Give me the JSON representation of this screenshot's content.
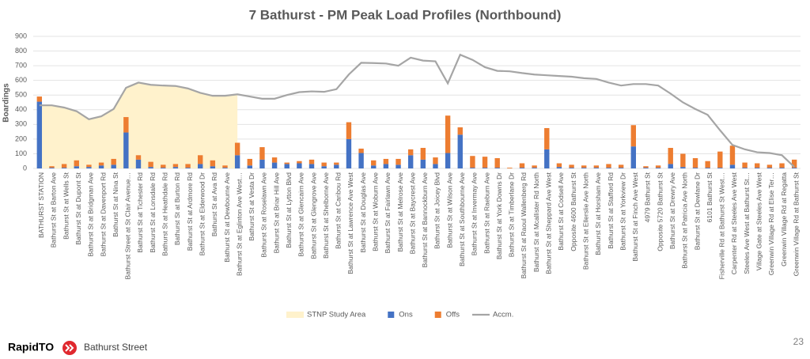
{
  "chart_data": {
    "type": "stacked_bar_line",
    "title": "7 Bathurst - PM Peak Load Profiles (Northbound)",
    "y_label": "Boardings",
    "categories": [
      "BATHURST STATION",
      "Bathurst St at Barton Ave",
      "Bathurst St at Wells St",
      "Bathurst St at Dupont St",
      "Bathurst St at Bridgman Ave",
      "Bathurst St at Davenport Rd",
      "Bathurst St at Nina St",
      "Bathurst Street at St Clair Avenue…",
      "Bathurst St at Tichester Rd",
      "Bathurst St at Lonsdale Rd",
      "Bathurst St at Heathdale Rd",
      "Bathurst St at Burton Rd",
      "Bathurst St at Ardmore Rd",
      "Bathurst St at Elderwood Dr",
      "Bathurst St at Ava Rd",
      "Bathurst St at Dewbourne Ave",
      "Bathurst St at Eglinton Ave West…",
      "Bathurst St at Vesta Dr",
      "Bathurst St at Roselawn Ave",
      "Bathurst St at Briar Hill Ave",
      "Bathurst St at Lytton Blvd",
      "Bathurst St at Glencairn Ave",
      "Bathurst St at Glengrove Ave",
      "Bathurst St at Shelborne Ave",
      "Bathurst St at Caribou Rd",
      "Bathurst St at Lawrence Ave West",
      "Bathurst St at Douglas Ave",
      "Bathurst St at Woburn Ave",
      "Bathurst St at Fairlawn Ave",
      "Bathurst St at Melrose Ave",
      "Bathurst St at Baycrest Ave",
      "Bathurst St at Bannockburn Ave",
      "Bathurst St at Joicey Blvd",
      "Bathurst St at Wilson Ave",
      "Bathurst St at Southbourne Ave",
      "Bathurst St at Invermay Ave",
      "Bathurst St at Raeburn Ave",
      "Bathurst St at York Downs Dr",
      "Bathurst St at Timberlane Dr",
      "Bathurst St at Raoul Wallenberg Rd",
      "Bathurst St at Mcallister Rd North",
      "Bathurst St at Sheppard Ave West",
      "Bathurst St at Codsell Ave",
      "Opposite 4600 Bathurst St",
      "Bathurst St at Ellerslie Ave North",
      "Bathurst St at Horsham Ave",
      "Bathurst St at Stafford Rd",
      "Bathurst St at Yorkview Dr",
      "Bathurst St at Finch Ave West",
      "4979 Bathurst St",
      "Opposite 5720 Bathurst St",
      "Bathurst St at Drewry Ave",
      "Bathurst St at Patricia Ave North",
      "Bathurst St at Dewlane Dr",
      "6101 Bathurst St",
      "Fisherville Rd at Bathurst St West…",
      "Carpenter Rd at Steeles Ave West",
      "Steeles Ave West at Bathurst St…",
      "Village Gate at Steeles Ave West",
      "Greenwin Village Rd at Elise Ter…",
      "Greenwin Village Rd at Regatta",
      "Greenwin Village Rd at Bathurst St"
    ],
    "series": [
      {
        "name": "Ons",
        "color": "#4472c4",
        "kind": "bar",
        "values": [
          455,
          5,
          5,
          15,
          10,
          20,
          25,
          245,
          60,
          10,
          5,
          10,
          5,
          30,
          15,
          5,
          90,
          20,
          60,
          40,
          30,
          35,
          30,
          15,
          25,
          200,
          105,
          20,
          30,
          25,
          90,
          60,
          30,
          105,
          230,
          5,
          5,
          5,
          0,
          5,
          5,
          130,
          10,
          5,
          5,
          5,
          5,
          5,
          150,
          5,
          5,
          30,
          10,
          5,
          5,
          5,
          25,
          5,
          5,
          5,
          5,
          5
        ]
      },
      {
        "name": "Offs",
        "color": "#ed7d31",
        "kind": "bar",
        "values": [
          35,
          10,
          25,
          40,
          15,
          20,
          40,
          105,
          30,
          35,
          20,
          20,
          25,
          60,
          40,
          15,
          85,
          45,
          85,
          35,
          10,
          15,
          30,
          25,
          15,
          115,
          30,
          35,
          35,
          40,
          40,
          80,
          45,
          255,
          50,
          80,
          75,
          65,
          5,
          30,
          15,
          145,
          25,
          20,
          15,
          15,
          25,
          20,
          145,
          10,
          15,
          110,
          90,
          65,
          45,
          110,
          130,
          35,
          30,
          20,
          30,
          55
        ]
      },
      {
        "name": "Accm.",
        "color": "#a5a5a5",
        "kind": "line",
        "values": [
          430,
          430,
          415,
          390,
          335,
          355,
          405,
          550,
          585,
          570,
          565,
          562,
          545,
          515,
          495,
          495,
          505,
          490,
          475,
          475,
          500,
          520,
          525,
          522,
          540,
          640,
          720,
          718,
          715,
          700,
          755,
          735,
          730,
          580,
          775,
          740,
          690,
          665,
          662,
          650,
          640,
          635,
          630,
          625,
          615,
          610,
          585,
          565,
          575,
          575,
          565,
          510,
          450,
          405,
          365,
          260,
          160,
          130,
          110,
          105,
          90,
          10
        ]
      }
    ],
    "study_area": {
      "name": "STNP Study Area",
      "color": "#fff2cc",
      "from_index": 0,
      "to_index": 16
    },
    "ylim": [
      0,
      900
    ],
    "yticks": [
      0,
      100,
      200,
      300,
      400,
      500,
      600,
      700,
      800,
      900
    ],
    "grid": true,
    "legend": "bottom"
  },
  "footer": {
    "logo": "RapidTO",
    "subtitle": "Bathurst Street",
    "page": "23"
  }
}
